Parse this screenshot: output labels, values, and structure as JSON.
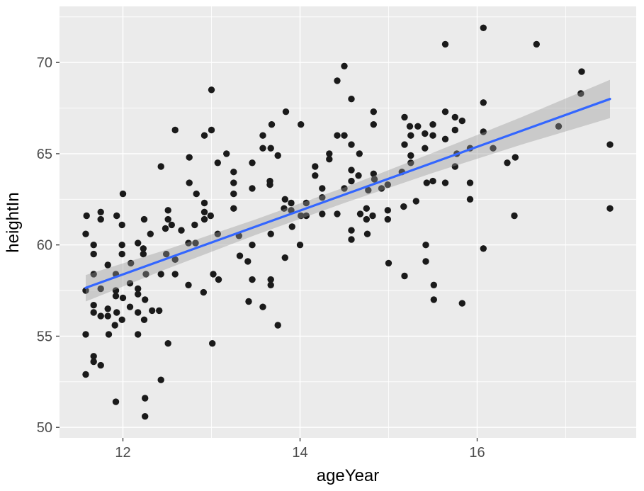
{
  "chart_data": {
    "type": "scatter",
    "title": "",
    "xlabel": "ageYear",
    "ylabel": "heightIn",
    "xlim": [
      11.284,
      17.796
    ],
    "ylim": [
      49.425,
      73.075
    ],
    "x_major_ticks": [
      12,
      14,
      16
    ],
    "x_minor_gridlines": [
      13,
      15,
      17
    ],
    "y_major_ticks": [
      50,
      55,
      60,
      65,
      70
    ],
    "y_minor_gridlines": [
      52.5,
      57.5,
      62.5,
      67.5,
      72.5
    ],
    "grid": true,
    "legend": "none",
    "points": [
      [
        13.0,
        68.5
      ],
      [
        12.59,
        66.3
      ],
      [
        12.92,
        66.0
      ],
      [
        13.0,
        66.3
      ],
      [
        12.75,
        64.8
      ],
      [
        13.17,
        65.0
      ],
      [
        13.07,
        64.5
      ],
      [
        12.43,
        64.3
      ],
      [
        13.25,
        64.0
      ],
      [
        12.75,
        63.4
      ],
      [
        13.25,
        63.4
      ],
      [
        12.83,
        62.8
      ],
      [
        13.25,
        62.8
      ],
      [
        12.0,
        62.8
      ],
      [
        12.92,
        62.3
      ],
      [
        13.25,
        62.0
      ],
      [
        11.59,
        61.6
      ],
      [
        11.75,
        61.8
      ],
      [
        11.75,
        61.4
      ],
      [
        11.93,
        61.6
      ],
      [
        12.24,
        61.4
      ],
      [
        12.51,
        61.9
      ],
      [
        12.51,
        61.4
      ],
      [
        12.92,
        61.8
      ],
      [
        12.92,
        61.4
      ],
      [
        12.99,
        61.6
      ],
      [
        14.5,
        69.8
      ],
      [
        14.42,
        69.0
      ],
      [
        14.58,
        68.0
      ],
      [
        13.84,
        67.3
      ],
      [
        14.83,
        67.3
      ],
      [
        15.18,
        67.0
      ],
      [
        13.68,
        66.6
      ],
      [
        14.01,
        66.6
      ],
      [
        14.83,
        66.6
      ],
      [
        15.24,
        66.5
      ],
      [
        15.33,
        66.5
      ],
      [
        15.5,
        66.6
      ],
      [
        13.58,
        66.0
      ],
      [
        14.42,
        66.0
      ],
      [
        14.5,
        66.0
      ],
      [
        15.25,
        66.0
      ],
      [
        15.41,
        66.1
      ],
      [
        15.5,
        66.0
      ],
      [
        13.58,
        65.3
      ],
      [
        13.67,
        65.3
      ],
      [
        14.58,
        65.5
      ],
      [
        15.18,
        65.5
      ],
      [
        15.41,
        65.3
      ],
      [
        13.75,
        64.9
      ],
      [
        14.33,
        65.0
      ],
      [
        14.33,
        64.7
      ],
      [
        14.67,
        65.0
      ],
      [
        13.46,
        64.5
      ],
      [
        15.25,
        64.9
      ],
      [
        15.25,
        64.5
      ],
      [
        14.17,
        64.3
      ],
      [
        14.58,
        64.1
      ],
      [
        14.17,
        63.8
      ],
      [
        14.66,
        63.8
      ],
      [
        14.83,
        63.9
      ],
      [
        15.15,
        64.0
      ],
      [
        13.66,
        63.5
      ],
      [
        13.66,
        63.3
      ],
      [
        14.58,
        63.5
      ],
      [
        14.84,
        63.6
      ],
      [
        15.43,
        63.4
      ],
      [
        15.5,
        63.5
      ],
      [
        13.46,
        63.1
      ],
      [
        14.25,
        63.1
      ],
      [
        14.5,
        63.1
      ],
      [
        14.77,
        63.0
      ],
      [
        14.92,
        63.1
      ],
      [
        14.99,
        63.3
      ],
      [
        13.83,
        62.5
      ],
      [
        13.9,
        62.3
      ],
      [
        14.25,
        62.6
      ],
      [
        14.25,
        61.7
      ],
      [
        13.82,
        62.0
      ],
      [
        13.9,
        61.9
      ],
      [
        14.07,
        62.3
      ],
      [
        14.07,
        61.6
      ],
      [
        14.01,
        61.6
      ],
      [
        14.42,
        61.7
      ],
      [
        15.17,
        62.1
      ],
      [
        15.31,
        62.4
      ],
      [
        14.68,
        61.7
      ],
      [
        14.75,
        62.0
      ],
      [
        14.75,
        61.4
      ],
      [
        14.82,
        61.6
      ],
      [
        14.99,
        61.9
      ],
      [
        14.99,
        61.4
      ],
      [
        16.07,
        71.9
      ],
      [
        15.64,
        71.0
      ],
      [
        16.67,
        71.0
      ],
      [
        17.18,
        69.5
      ],
      [
        17.17,
        68.3
      ],
      [
        16.07,
        67.8
      ],
      [
        15.64,
        67.3
      ],
      [
        15.75,
        67.0
      ],
      [
        15.83,
        66.8
      ],
      [
        15.75,
        66.3
      ],
      [
        15.64,
        65.8
      ],
      [
        16.07,
        66.2
      ],
      [
        16.92,
        66.5
      ],
      [
        15.92,
        65.3
      ],
      [
        16.18,
        65.3
      ],
      [
        15.77,
        65.0
      ],
      [
        17.5,
        65.5
      ],
      [
        16.43,
        64.8
      ],
      [
        16.34,
        64.5
      ],
      [
        15.75,
        64.3
      ],
      [
        15.64,
        63.4
      ],
      [
        15.92,
        63.4
      ],
      [
        15.92,
        62.5
      ],
      [
        17.5,
        62.0
      ],
      [
        16.42,
        61.6
      ],
      [
        11.58,
        60.6
      ],
      [
        11.67,
        60.0
      ],
      [
        11.67,
        59.5
      ],
      [
        11.99,
        61.1
      ],
      [
        11.99,
        60.0
      ],
      [
        11.99,
        59.5
      ],
      [
        12.17,
        60.1
      ],
      [
        12.23,
        59.8
      ],
      [
        12.23,
        59.5
      ],
      [
        12.31,
        60.6
      ],
      [
        12.48,
        60.9
      ],
      [
        12.55,
        61.1
      ],
      [
        12.66,
        60.8
      ],
      [
        12.81,
        61.1
      ],
      [
        12.74,
        60.1
      ],
      [
        12.82,
        60.1
      ],
      [
        13.07,
        60.6
      ],
      [
        13.31,
        60.5
      ],
      [
        13.41,
        59.1
      ],
      [
        13.32,
        59.4
      ],
      [
        11.83,
        58.9
      ],
      [
        11.92,
        58.4
      ],
      [
        11.67,
        58.4
      ],
      [
        11.58,
        57.5
      ],
      [
        11.75,
        57.6
      ],
      [
        11.92,
        57.5
      ],
      [
        12.09,
        59.0
      ],
      [
        12.08,
        57.9
      ],
      [
        12.26,
        58.4
      ],
      [
        12.17,
        57.6
      ],
      [
        12.17,
        57.3
      ],
      [
        12.25,
        57.0
      ],
      [
        11.92,
        57.2
      ],
      [
        12.0,
        57.1
      ],
      [
        11.67,
        56.7
      ],
      [
        11.67,
        56.3
      ],
      [
        11.83,
        56.5
      ],
      [
        11.75,
        56.1
      ],
      [
        11.83,
        56.1
      ],
      [
        11.93,
        56.3
      ],
      [
        12.08,
        56.6
      ],
      [
        11.99,
        55.9
      ],
      [
        12.17,
        56.3
      ],
      [
        12.24,
        55.9
      ],
      [
        12.33,
        56.4
      ],
      [
        12.41,
        56.4
      ],
      [
        11.91,
        55.6
      ],
      [
        11.58,
        55.1
      ],
      [
        11.84,
        55.1
      ],
      [
        12.17,
        55.1
      ],
      [
        12.51,
        54.6
      ],
      [
        13.01,
        54.6
      ],
      [
        11.67,
        53.9
      ],
      [
        11.67,
        53.6
      ],
      [
        11.75,
        53.4
      ],
      [
        11.58,
        52.9
      ],
      [
        12.43,
        52.6
      ],
      [
        12.25,
        51.6
      ],
      [
        11.92,
        51.4
      ],
      [
        12.25,
        50.6
      ],
      [
        12.49,
        59.5
      ],
      [
        12.59,
        59.2
      ],
      [
        12.43,
        58.4
      ],
      [
        12.59,
        58.4
      ],
      [
        12.74,
        57.8
      ],
      [
        12.91,
        57.4
      ],
      [
        13.02,
        58.4
      ],
      [
        13.08,
        58.1
      ],
      [
        13.42,
        56.9
      ],
      [
        13.91,
        61.0
      ],
      [
        13.67,
        60.6
      ],
      [
        13.46,
        60.0
      ],
      [
        14.0,
        60.0
      ],
      [
        14.58,
        60.8
      ],
      [
        14.58,
        60.3
      ],
      [
        14.76,
        60.6
      ],
      [
        15.42,
        60.0
      ],
      [
        13.83,
        59.3
      ],
      [
        15.0,
        59.0
      ],
      [
        15.42,
        59.1
      ],
      [
        15.18,
        58.3
      ],
      [
        13.46,
        58.1
      ],
      [
        13.67,
        58.1
      ],
      [
        13.67,
        57.8
      ],
      [
        15.51,
        57.8
      ],
      [
        15.51,
        57.0
      ],
      [
        13.58,
        56.6
      ],
      [
        13.75,
        55.6
      ],
      [
        16.07,
        59.8
      ],
      [
        15.83,
        56.8
      ]
    ],
    "trend": {
      "type": "linear-regression",
      "x": [
        11.58,
        17.5
      ],
      "y": [
        57.65,
        68.0
      ],
      "color": "#3366FF"
    },
    "confidence_band": {
      "x": [
        11.58,
        12.5,
        13.5,
        14.5,
        15.5,
        16.5,
        17.5
      ],
      "upper": [
        58.35,
        59.75,
        61.4,
        63.15,
        65.05,
        67.0,
        69.05
      ],
      "lower": [
        56.9,
        58.7,
        60.55,
        62.3,
        63.95,
        65.5,
        66.95
      ],
      "fill": "#999999",
      "opacity": 0.4
    },
    "style": {
      "panel_bg": "#EBEBEB",
      "outer_bg": "#FFFFFF",
      "grid_color": "#FFFFFF",
      "point_color": "#1A1A1A",
      "tick_mark_color": "#333333",
      "tick_label_color": "#4D4D4D",
      "axis_title_color": "#000000"
    }
  }
}
